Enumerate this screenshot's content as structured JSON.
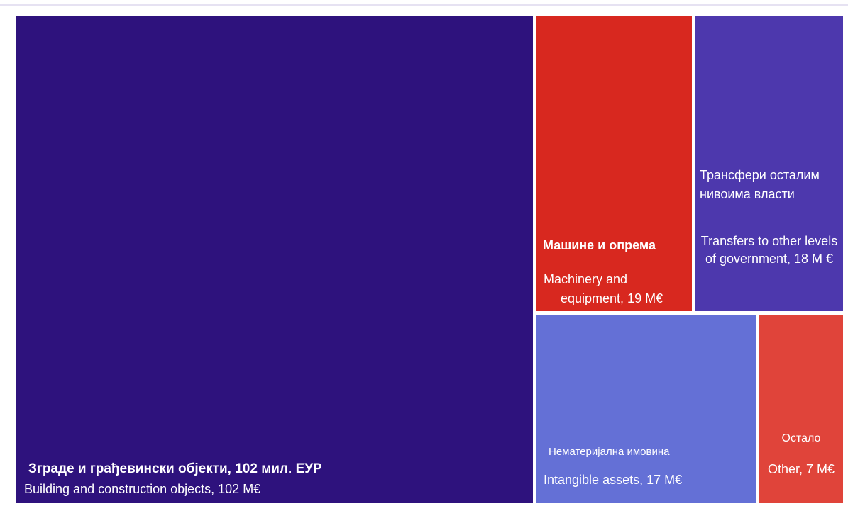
{
  "chart_data": {
    "type": "treemap",
    "unit": "M€",
    "items": [
      {
        "key": "building",
        "label_sr": "Зграде и грађевински објекти, 102 мил. ЕУР",
        "label_en": "Building and construction objects, 102 M€",
        "value": 102,
        "color": "#2e127d"
      },
      {
        "key": "machinery",
        "label_sr": "Машине и опрема",
        "label_en": "Machinery and",
        "label_en2": "equipment, 19 M€",
        "value": 19,
        "color": "#d8281f"
      },
      {
        "key": "transfers",
        "label_sr": "Трансфери осталим нивоима власти",
        "label_en": "Transfers to other levels of government, 18 M €",
        "value": 18,
        "color": "#4d38ad"
      },
      {
        "key": "intangible",
        "label_sr": "Нематеријална имовина",
        "label_en": "Intangible assets, 17 M€",
        "value": 17,
        "color": "#6470d6"
      },
      {
        "key": "other",
        "label_sr": "Остало",
        "label_en": "Other, 7 M€",
        "value": 7,
        "color": "#e0443a"
      }
    ]
  }
}
